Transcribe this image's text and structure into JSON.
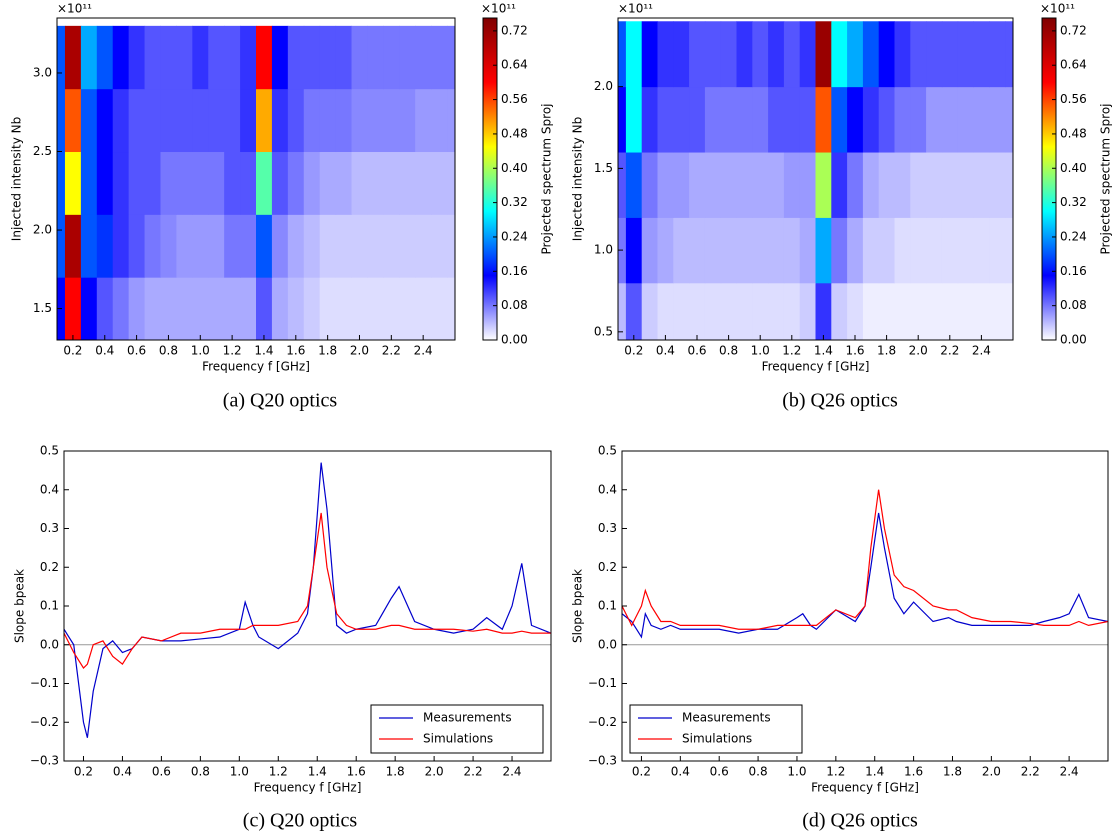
{
  "chart_data": [
    {
      "type": "heatmap",
      "caption": "(a) Q20 optics",
      "xlabel": "Frequency f [GHz]",
      "ylabel": "Injected intensity Nb",
      "y_offset_label": "×10¹¹",
      "colorbar_label": "Projected spectrum Sproj",
      "colorbar_offset_label": "×10¹¹",
      "x": [
        0.1,
        0.2,
        0.3,
        0.4,
        0.5,
        0.6,
        0.7,
        0.8,
        0.9,
        1.0,
        1.1,
        1.2,
        1.3,
        1.4,
        1.5,
        1.6,
        1.7,
        1.8,
        1.9,
        2.0,
        2.1,
        2.2,
        2.3,
        2.4,
        2.5,
        2.6
      ],
      "y": [
        1.5,
        1.9,
        2.3,
        2.7,
        3.1
      ],
      "values": [
        [
          0.15,
          0.6,
          0.15,
          0.1,
          0.08,
          0.06,
          0.05,
          0.05,
          0.05,
          0.05,
          0.05,
          0.05,
          0.05,
          0.1,
          0.05,
          0.04,
          0.03,
          0.02,
          0.02,
          0.02,
          0.02,
          0.02,
          0.02,
          0.02,
          0.02,
          0.02
        ],
        [
          0.2,
          0.7,
          0.2,
          0.18,
          0.12,
          0.1,
          0.08,
          0.07,
          0.06,
          0.06,
          0.06,
          0.08,
          0.08,
          0.2,
          0.07,
          0.05,
          0.04,
          0.03,
          0.03,
          0.03,
          0.03,
          0.03,
          0.03,
          0.03,
          0.03,
          0.03
        ],
        [
          0.2,
          0.45,
          0.2,
          0.15,
          0.12,
          0.1,
          0.1,
          0.08,
          0.08,
          0.08,
          0.08,
          0.1,
          0.1,
          0.35,
          0.1,
          0.08,
          0.06,
          0.05,
          0.05,
          0.04,
          0.04,
          0.04,
          0.04,
          0.04,
          0.04,
          0.04
        ],
        [
          0.2,
          0.55,
          0.2,
          0.15,
          0.12,
          0.1,
          0.1,
          0.1,
          0.1,
          0.1,
          0.1,
          0.1,
          0.12,
          0.5,
          0.12,
          0.1,
          0.08,
          0.08,
          0.08,
          0.07,
          0.07,
          0.07,
          0.07,
          0.06,
          0.06,
          0.06
        ],
        [
          0.2,
          0.7,
          0.25,
          0.2,
          0.15,
          0.12,
          0.1,
          0.1,
          0.1,
          0.12,
          0.1,
          0.1,
          0.12,
          0.6,
          0.15,
          0.1,
          0.1,
          0.1,
          0.1,
          0.08,
          0.08,
          0.08,
          0.08,
          0.08,
          0.08,
          0.08
        ]
      ],
      "xlim": [
        0.1,
        2.6
      ],
      "ylim": [
        1.3,
        3.35
      ],
      "xticks": [
        0.2,
        0.4,
        0.6,
        0.8,
        {
          "value": 1,
          "label": "1.0"
        },
        1.2,
        1.4,
        1.6,
        1.8,
        {
          "value": 2,
          "label": "2.0"
        },
        2.2,
        2.4
      ],
      "yticks": [
        1.5,
        {
          "value": 2,
          "label": "2.0"
        },
        2.5,
        {
          "value": 3,
          "label": "3.0"
        }
      ],
      "clim": [
        0,
        0.75
      ],
      "colorbar_ticks": [
        {
          "value": 0,
          "label": "0.00"
        },
        {
          "value": 0.08,
          "label": "0.08"
        },
        {
          "value": 0.16,
          "label": "0.16"
        },
        {
          "value": 0.24,
          "label": "0.24"
        },
        {
          "value": 0.32,
          "label": "0.32"
        },
        {
          "value": 0.4,
          "label": "0.40"
        },
        {
          "value": 0.48,
          "label": "0.48"
        },
        {
          "value": 0.56,
          "label": "0.56"
        },
        {
          "value": 0.64,
          "label": "0.64"
        },
        {
          "value": 0.72,
          "label": "0.72"
        }
      ],
      "colormap": [
        "#ffffff",
        "#0000ff",
        "#00ffff",
        "#ffff00",
        "#ff0000",
        "#800000"
      ]
    },
    {
      "type": "heatmap",
      "caption": "(b) Q26 optics",
      "xlabel": "Frequency f [GHz]",
      "ylabel": "Injected intensity Nb",
      "y_offset_label": "×10¹¹",
      "colorbar_label": "Projected spectrum Sproj",
      "colorbar_offset_label": "×10¹¹",
      "x": [
        0.1,
        0.2,
        0.3,
        0.4,
        0.5,
        0.6,
        0.7,
        0.8,
        0.9,
        1.0,
        1.1,
        1.2,
        1.3,
        1.4,
        1.5,
        1.6,
        1.7,
        1.8,
        1.9,
        2.0,
        2.1,
        2.2,
        2.3,
        2.4,
        2.5,
        2.6
      ],
      "y": [
        0.6,
        1.0,
        1.4,
        1.8,
        2.2
      ],
      "values": [
        [
          0.04,
          0.1,
          0.03,
          0.02,
          0.02,
          0.02,
          0.02,
          0.02,
          0.02,
          0.02,
          0.02,
          0.02,
          0.03,
          0.12,
          0.03,
          0.02,
          0.01,
          0.01,
          0.01,
          0.01,
          0.01,
          0.01,
          0.01,
          0.01,
          0.01,
          0.01
        ],
        [
          0.08,
          0.15,
          0.06,
          0.05,
          0.04,
          0.04,
          0.04,
          0.04,
          0.04,
          0.04,
          0.04,
          0.04,
          0.05,
          0.25,
          0.08,
          0.05,
          0.03,
          0.03,
          0.02,
          0.02,
          0.02,
          0.02,
          0.02,
          0.02,
          0.02,
          0.02
        ],
        [
          0.1,
          0.2,
          0.08,
          0.06,
          0.06,
          0.05,
          0.05,
          0.05,
          0.05,
          0.05,
          0.05,
          0.06,
          0.06,
          0.4,
          0.12,
          0.08,
          0.05,
          0.04,
          0.04,
          0.03,
          0.03,
          0.03,
          0.03,
          0.03,
          0.03,
          0.03
        ],
        [
          0.15,
          0.3,
          0.12,
          0.1,
          0.1,
          0.1,
          0.08,
          0.08,
          0.08,
          0.08,
          0.1,
          0.1,
          0.1,
          0.55,
          0.2,
          0.15,
          0.12,
          0.1,
          0.08,
          0.08,
          0.06,
          0.06,
          0.06,
          0.06,
          0.06,
          0.06
        ],
        [
          0.2,
          0.3,
          0.15,
          0.12,
          0.12,
          0.1,
          0.1,
          0.1,
          0.12,
          0.1,
          0.12,
          0.1,
          0.12,
          0.72,
          0.3,
          0.25,
          0.2,
          0.15,
          0.12,
          0.1,
          0.1,
          0.1,
          0.1,
          0.1,
          0.1,
          0.1
        ]
      ],
      "xlim": [
        0.1,
        2.6
      ],
      "ylim": [
        0.45,
        2.42
      ],
      "xticks": [
        0.2,
        0.4,
        0.6,
        0.8,
        {
          "value": 1,
          "label": "1.0"
        },
        1.2,
        1.4,
        1.6,
        1.8,
        {
          "value": 2,
          "label": "2.0"
        },
        2.2,
        2.4
      ],
      "yticks": [
        0.5,
        {
          "value": 1,
          "label": "1.0"
        },
        1.5,
        {
          "value": 2,
          "label": "2.0"
        }
      ],
      "clim": [
        0,
        0.75
      ],
      "colorbar_ticks": [
        {
          "value": 0,
          "label": "0.00"
        },
        {
          "value": 0.08,
          "label": "0.08"
        },
        {
          "value": 0.16,
          "label": "0.16"
        },
        {
          "value": 0.24,
          "label": "0.24"
        },
        {
          "value": 0.32,
          "label": "0.32"
        },
        {
          "value": 0.4,
          "label": "0.40"
        },
        {
          "value": 0.48,
          "label": "0.48"
        },
        {
          "value": 0.56,
          "label": "0.56"
        },
        {
          "value": 0.64,
          "label": "0.64"
        },
        {
          "value": 0.72,
          "label": "0.72"
        }
      ],
      "colormap": [
        "#ffffff",
        "#0000ff",
        "#00ffff",
        "#ffff00",
        "#ff0000",
        "#800000"
      ]
    },
    {
      "type": "line",
      "caption": "(c) Q20 optics",
      "xlabel": "Frequency f [GHz]",
      "ylabel": "Slope bpeak",
      "x": [
        0.1,
        0.15,
        0.2,
        0.22,
        0.25,
        0.3,
        0.35,
        0.4,
        0.45,
        0.5,
        0.6,
        0.7,
        0.8,
        0.9,
        1.0,
        1.03,
        1.07,
        1.1,
        1.2,
        1.3,
        1.35,
        1.38,
        1.42,
        1.45,
        1.5,
        1.55,
        1.6,
        1.7,
        1.78,
        1.82,
        1.9,
        2.0,
        2.1,
        2.2,
        2.27,
        2.35,
        2.4,
        2.45,
        2.5,
        2.6
      ],
      "series": [
        {
          "name": "Measurements",
          "color": "#0000cc",
          "values": [
            0.04,
            0.0,
            -0.2,
            -0.24,
            -0.12,
            -0.01,
            0.01,
            -0.02,
            -0.01,
            0.02,
            0.01,
            0.01,
            0.015,
            0.02,
            0.04,
            0.11,
            0.05,
            0.02,
            -0.01,
            0.03,
            0.08,
            0.2,
            0.47,
            0.35,
            0.05,
            0.03,
            0.04,
            0.05,
            0.12,
            0.15,
            0.06,
            0.04,
            0.03,
            0.04,
            0.07,
            0.04,
            0.1,
            0.21,
            0.05,
            0.03
          ]
        },
        {
          "name": "Simulations",
          "color": "#ff0000",
          "values": [
            0.03,
            -0.02,
            -0.06,
            -0.05,
            0.0,
            0.01,
            -0.03,
            -0.05,
            -0.01,
            0.02,
            0.01,
            0.03,
            0.03,
            0.04,
            0.04,
            0.04,
            0.05,
            0.05,
            0.05,
            0.06,
            0.1,
            0.2,
            0.34,
            0.2,
            0.08,
            0.05,
            0.04,
            0.04,
            0.05,
            0.05,
            0.04,
            0.04,
            0.04,
            0.035,
            0.04,
            0.03,
            0.03,
            0.035,
            0.03,
            0.03
          ]
        }
      ],
      "xlim": [
        0.1,
        2.6
      ],
      "ylim": [
        -0.3,
        0.5
      ],
      "xticks": [
        0.2,
        0.4,
        0.6,
        0.8,
        {
          "value": 1,
          "label": "1.0"
        },
        1.2,
        1.4,
        1.6,
        1.8,
        {
          "value": 2,
          "label": "2.0"
        },
        2.2,
        2.4
      ],
      "yticks": [
        {
          "value": -0.3,
          "label": "−0.3"
        },
        {
          "value": -0.2,
          "label": "−0.2"
        },
        {
          "value": -0.1,
          "label": "−0.1"
        },
        {
          "value": 0,
          "label": "0.0"
        },
        0.1,
        0.2,
        0.3,
        0.4,
        0.5
      ],
      "reference_line": 0,
      "legend": "lower right"
    },
    {
      "type": "line",
      "caption": "(d) Q26 optics",
      "xlabel": "Frequency f [GHz]",
      "ylabel": "Slope bpeak",
      "x": [
        0.1,
        0.15,
        0.2,
        0.22,
        0.25,
        0.3,
        0.35,
        0.4,
        0.45,
        0.5,
        0.6,
        0.7,
        0.8,
        0.9,
        1.0,
        1.03,
        1.07,
        1.1,
        1.2,
        1.3,
        1.35,
        1.38,
        1.42,
        1.45,
        1.5,
        1.55,
        1.6,
        1.7,
        1.78,
        1.82,
        1.9,
        2.0,
        2.1,
        2.2,
        2.27,
        2.35,
        2.4,
        2.45,
        2.5,
        2.6
      ],
      "series": [
        {
          "name": "Measurements",
          "color": "#0000cc",
          "values": [
            0.08,
            0.06,
            0.02,
            0.08,
            0.05,
            0.04,
            0.05,
            0.04,
            0.04,
            0.04,
            0.04,
            0.03,
            0.04,
            0.04,
            0.07,
            0.08,
            0.05,
            0.04,
            0.09,
            0.06,
            0.1,
            0.2,
            0.34,
            0.25,
            0.12,
            0.08,
            0.11,
            0.06,
            0.07,
            0.06,
            0.05,
            0.05,
            0.05,
            0.05,
            0.06,
            0.07,
            0.08,
            0.13,
            0.07,
            0.06
          ]
        },
        {
          "name": "Simulations",
          "color": "#ff0000",
          "values": [
            0.1,
            0.05,
            0.1,
            0.14,
            0.1,
            0.06,
            0.06,
            0.05,
            0.05,
            0.05,
            0.05,
            0.04,
            0.04,
            0.05,
            0.05,
            0.05,
            0.05,
            0.05,
            0.09,
            0.07,
            0.1,
            0.25,
            0.4,
            0.3,
            0.18,
            0.15,
            0.14,
            0.1,
            0.09,
            0.09,
            0.07,
            0.06,
            0.06,
            0.055,
            0.05,
            0.05,
            0.05,
            0.06,
            0.05,
            0.06
          ]
        }
      ],
      "xlim": [
        0.1,
        2.6
      ],
      "ylim": [
        -0.3,
        0.5
      ],
      "xticks": [
        0.2,
        0.4,
        0.6,
        0.8,
        {
          "value": 1,
          "label": "1.0"
        },
        1.2,
        1.4,
        1.6,
        1.8,
        {
          "value": 2,
          "label": "2.0"
        },
        2.2,
        2.4
      ],
      "yticks": [
        {
          "value": -0.3,
          "label": "−0.3"
        },
        {
          "value": -0.2,
          "label": "−0.2"
        },
        {
          "value": -0.1,
          "label": "−0.1"
        },
        {
          "value": 0,
          "label": "0.0"
        },
        0.1,
        0.2,
        0.3,
        0.4,
        0.5
      ],
      "reference_line": 0,
      "legend": "lower left"
    }
  ]
}
